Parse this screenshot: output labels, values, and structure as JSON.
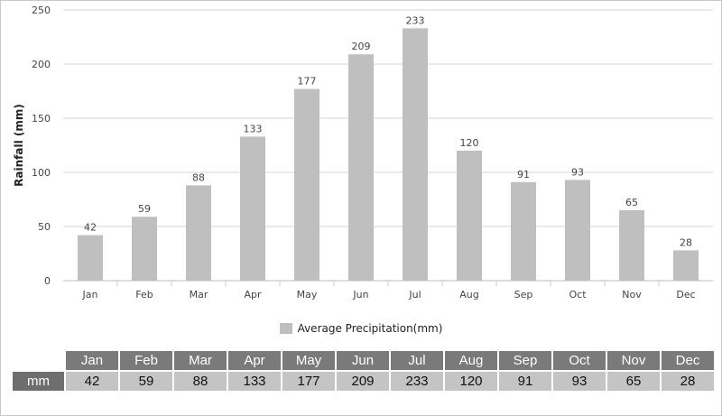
{
  "chart_data": {
    "type": "bar",
    "categories": [
      "Jan",
      "Feb",
      "Mar",
      "Apr",
      "May",
      "Jun",
      "Jul",
      "Aug",
      "Sep",
      "Oct",
      "Nov",
      "Dec"
    ],
    "series": [
      {
        "name": "Average Precipitation(mm)",
        "values": [
          42,
          59,
          88,
          133,
          177,
          209,
          233,
          120,
          91,
          93,
          65,
          28
        ]
      }
    ],
    "ylabel": "Rainfall (mm)",
    "ylim": [
      0,
      250
    ],
    "yticks": [
      0,
      50,
      100,
      150,
      200,
      250
    ],
    "grid": true,
    "legend_position": "bottom",
    "bar_color": "#bfbfbf"
  },
  "table": {
    "row_label": "mm",
    "headers": [
      "Jan",
      "Feb",
      "Mar",
      "Apr",
      "May",
      "Jun",
      "Jul",
      "Aug",
      "Sep",
      "Oct",
      "Nov",
      "Dec"
    ],
    "values": [
      "42",
      "59",
      "88",
      "133",
      "177",
      "209",
      "233",
      "120",
      "91",
      "93",
      "65",
      "28"
    ]
  }
}
